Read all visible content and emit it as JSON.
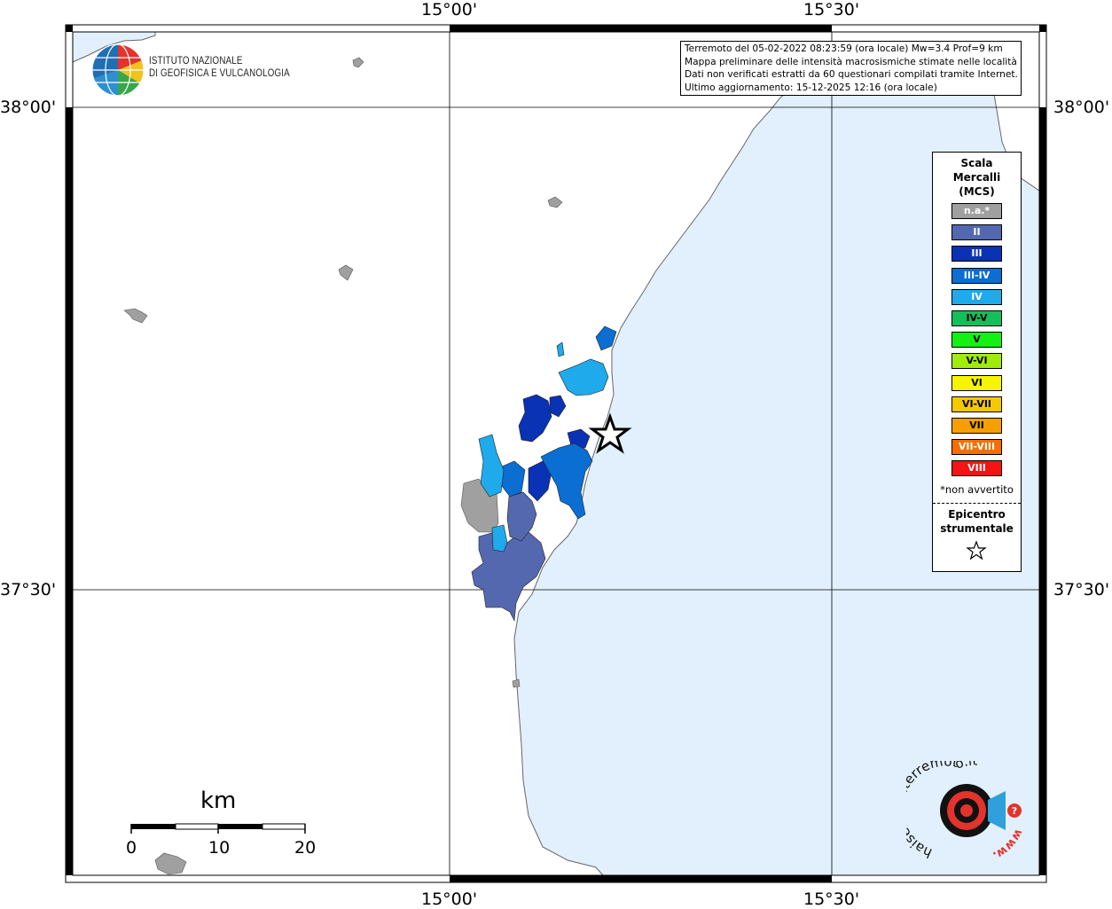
{
  "map": {
    "top_labels": [
      "15°00'",
      "15°30'"
    ],
    "bottom_labels": [
      "15°00'",
      "15°30'"
    ],
    "left_labels": [
      "38°00'",
      "37°30'"
    ],
    "right_labels": [
      "38°00'",
      "37°30'"
    ]
  },
  "info": {
    "lines": [
      "Terremoto del 05-02-2022 08:23:59 (ora locale) Mw=3.4 Prof=9 km",
      "Mappa preliminare delle intensità macrosismiche stimate nelle località",
      "Dati non verificati estratti da 60 questionari compilati tramite Internet.",
      "Ultimo aggiornamento: 15-12-2025 12:16 (ora locale)"
    ]
  },
  "institute": {
    "line1": "ISTITUTO NAZIONALE",
    "line2": "DI GEOFISICA E VULCANOLOGIA"
  },
  "legend": {
    "title": [
      "Scala",
      "Mercalli",
      "(MCS)"
    ],
    "items": [
      {
        "label": "n.a.*",
        "color": "#a0a0a0"
      },
      {
        "label": "II",
        "color": "#5468b0"
      },
      {
        "label": "III",
        "color": "#0a32b4"
      },
      {
        "label": "III-IV",
        "color": "#0a6ed2"
      },
      {
        "label": "IV",
        "color": "#1eaaeb"
      },
      {
        "label": "IV-V",
        "color": "#14be5a"
      },
      {
        "label": "V",
        "color": "#14f014"
      },
      {
        "label": "V-VI",
        "color": "#a0eb0a"
      },
      {
        "label": "VI",
        "color": "#f5f500"
      },
      {
        "label": "VI-VII",
        "color": "#f5c800"
      },
      {
        "label": "VII",
        "color": "#f5a000"
      },
      {
        "label": "VII-VIII",
        "color": "#f56e00"
      },
      {
        "label": "VIII",
        "color": "#f51414"
      }
    ],
    "note": "*non avvertito",
    "epicenter": [
      "Epicentro",
      "strumentale"
    ]
  },
  "scalebar": {
    "unit": "km",
    "ticks": [
      "0",
      "10",
      "20"
    ]
  },
  "hsi_logo": {
    "text": "haisentitoilterremoto.it",
    "url": "www."
  },
  "colors": {
    "sea": "#e1f0fc",
    "land": "#ffffff"
  }
}
